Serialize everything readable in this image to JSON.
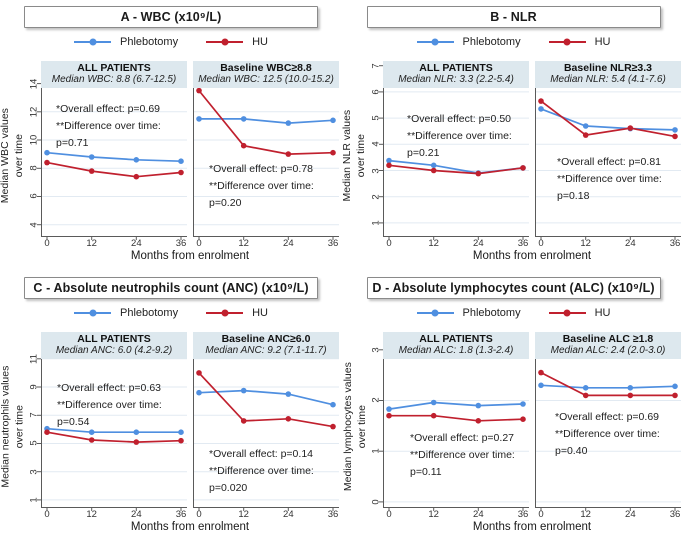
{
  "colors": {
    "phlebotomy": "#4f8fe0",
    "hu": "#c0202e",
    "header_bg": "#dde8ee",
    "grid": "#e2eaf2",
    "axis": "#5a5a5a",
    "title_border": "#8a8a8a"
  },
  "legend": {
    "phlebotomy_label": "Phlebotomy",
    "hu_label": "HU"
  },
  "chart_data": [
    {
      "type": "line",
      "title": "A - WBC (x10⁹/L)",
      "xlabel": "Months from enrolment",
      "ylabel": "Median WBC values\nover time",
      "x": [
        0,
        12,
        24,
        36
      ],
      "yticks": [
        4,
        6,
        8,
        10,
        12,
        14
      ],
      "ylim": [
        3.2,
        15.6
      ],
      "legend_position": "top",
      "grid": "horizontal",
      "subplots": [
        {
          "header": "ALL PATIENTS",
          "subheader": "Median WBC: 8.8 (6.7-12.5)",
          "series": [
            {
              "name": "Phlebotomy",
              "values": [
                9.1,
                8.8,
                8.6,
                8.5
              ]
            },
            {
              "name": "HU",
              "values": [
                8.4,
                7.8,
                7.4,
                7.7
              ]
            }
          ],
          "annotation": {
            "lines": [
              "*Overall effect: p=0.69",
              "**Difference over time:",
              "p=0.71"
            ],
            "x": 15,
            "y": 40
          }
        },
        {
          "header": "Baseline WBC≥8.8",
          "subheader": "Median WBC: 12.5 (10.0-15.2)",
          "series": [
            {
              "name": "Phlebotomy",
              "values": [
                11.5,
                11.5,
                11.2,
                11.4
              ]
            },
            {
              "name": "HU",
              "values": [
                13.5,
                9.6,
                9.0,
                9.1
              ]
            }
          ],
          "annotation": {
            "lines": [
              "*Overall effect: p=0.78",
              "**Difference over time:",
              "p=0.20"
            ],
            "x": 16,
            "y": 100
          }
        }
      ]
    },
    {
      "type": "line",
      "title": "B - NLR",
      "xlabel": "Months from enrolment",
      "ylabel": "Median NLR values\nover time",
      "x": [
        0,
        12,
        24,
        36
      ],
      "yticks": [
        1,
        2,
        3,
        4,
        5,
        6,
        7
      ],
      "ylim": [
        0.5,
        7.18
      ],
      "legend_position": "top",
      "grid": "horizontal",
      "subplots": [
        {
          "header": "ALL PATIENTS",
          "subheader": "Median NLR: 3.3 (2.2-5.4)",
          "series": [
            {
              "name": "Phlebotomy",
              "values": [
                3.38,
                3.2,
                2.9,
                3.1
              ]
            },
            {
              "name": "HU",
              "values": [
                3.2,
                3.0,
                2.88,
                3.1
              ]
            }
          ],
          "annotation": {
            "lines": [
              "*Overall effect: p=0.50",
              "**Difference over time:",
              "p=0.21"
            ],
            "x": 24,
            "y": 50
          }
        },
        {
          "header": "Baseline NLR≥3.3",
          "subheader": "Median NLR: 5.4 (4.1-7.6)",
          "series": [
            {
              "name": "Phlebotomy",
              "values": [
                5.35,
                4.7,
                4.6,
                4.55
              ]
            },
            {
              "name": "HU",
              "values": [
                5.65,
                4.35,
                4.62,
                4.3
              ]
            }
          ],
          "annotation": {
            "lines": [
              "*Overall effect: p=0.81",
              "**Difference over time:",
              "p=0.18"
            ],
            "x": 22,
            "y": 93
          }
        }
      ]
    },
    {
      "type": "line",
      "title": "C - Absolute neutrophils count (ANC) (x10⁹/L)",
      "xlabel": "Months from enrolment",
      "ylabel": "Median neutrophils values\nover time",
      "x": [
        0,
        12,
        24,
        36
      ],
      "yticks": [
        1,
        3,
        5,
        7,
        9,
        11
      ],
      "ylim": [
        0.5,
        12.9
      ],
      "legend_position": "top",
      "grid": "horizontal",
      "subplots": [
        {
          "header": "ALL PATIENTS",
          "subheader": "Median ANC: 6.0 (4.2-9.2)",
          "series": [
            {
              "name": "Phlebotomy",
              "values": [
                6.05,
                5.8,
                5.8,
                5.8
              ]
            },
            {
              "name": "HU",
              "values": [
                5.8,
                5.25,
                5.1,
                5.2
              ]
            }
          ],
          "annotation": {
            "lines": [
              "*Overall effect: p=0.63",
              "**Difference over time:",
              "p=0.54"
            ],
            "x": 16,
            "y": 48
          }
        },
        {
          "header": "Baseline ANC≥6.0",
          "subheader": "Median ANC: 9.2 (7.1-11.7)",
          "series": [
            {
              "name": "Phlebotomy",
              "values": [
                8.6,
                8.75,
                8.5,
                7.75
              ]
            },
            {
              "name": "HU",
              "values": [
                10.0,
                6.6,
                6.75,
                6.2
              ]
            }
          ],
          "annotation": {
            "lines": [
              "*Overall effect: p=0.14",
              "**Difference over time:",
              "p=0.020"
            ],
            "x": 16,
            "y": 114
          }
        }
      ]
    },
    {
      "type": "line",
      "title": "D - Absolute lymphocytes count (ALC) (x10⁹/L)",
      "xlabel": "Months from enrolment",
      "ylabel": "Median lymphocytes values\nover time",
      "x": [
        0,
        12,
        24,
        36
      ],
      "yticks": [
        0,
        1,
        2,
        3
      ],
      "ylim": [
        -0.1,
        3.35
      ],
      "legend_position": "top",
      "grid": "horizontal",
      "subplots": [
        {
          "header": "ALL PATIENTS",
          "subheader": "Median ALC: 1.8 (1.3-2.4)",
          "series": [
            {
              "name": "Phlebotomy",
              "values": [
                1.83,
                1.96,
                1.9,
                1.93
              ]
            },
            {
              "name": "HU",
              "values": [
                1.7,
                1.7,
                1.6,
                1.63
              ]
            }
          ],
          "annotation": {
            "lines": [
              "*Overall effect: p=0.27",
              "**Difference over time:",
              "p=0.11"
            ],
            "x": 27,
            "y": 98
          }
        },
        {
          "header": "Baseline ALC ≥1.8",
          "subheader": "Median ALC: 2.4 (2.0-3.0)",
          "series": [
            {
              "name": "Phlebotomy",
              "values": [
                2.3,
                2.25,
                2.25,
                2.28
              ]
            },
            {
              "name": "HU",
              "values": [
                2.55,
                2.1,
                2.1,
                2.1
              ]
            }
          ],
          "annotation": {
            "lines": [
              "*Overall effect: p=0.69",
              "**Difference over time:",
              "p=0.40"
            ],
            "x": 20,
            "y": 77
          }
        }
      ]
    }
  ]
}
